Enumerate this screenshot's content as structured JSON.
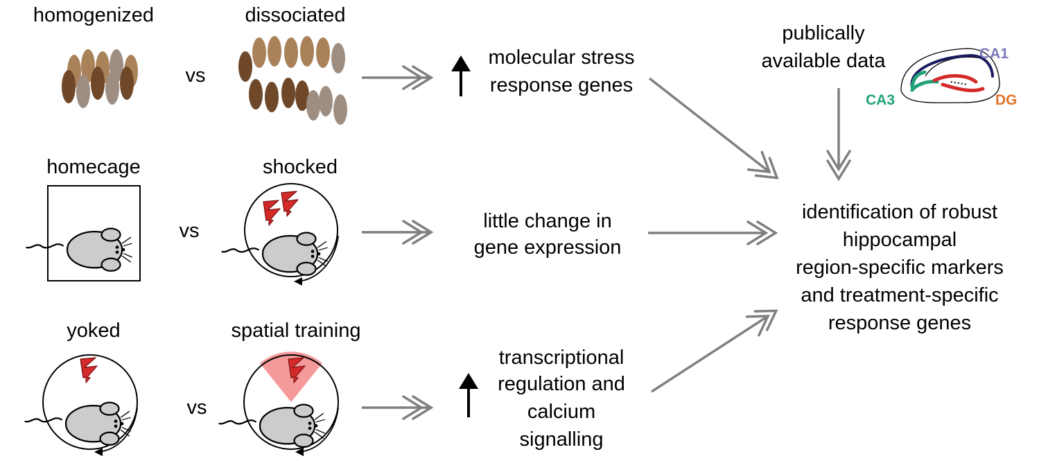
{
  "rows": [
    {
      "left": "homogenized",
      "vs": "vs",
      "right": "dissociated",
      "result": [
        "molecular stress",
        "response genes"
      ],
      "trend": "up"
    },
    {
      "left": "homecage",
      "vs": "vs",
      "right": "shocked",
      "result": [
        "little change in",
        "gene expression"
      ],
      "trend": "none"
    },
    {
      "left": "yoked",
      "vs": "vs",
      "right": "spatial training",
      "result": [
        "transcriptional",
        "regulation and",
        "calcium",
        "signalling"
      ],
      "trend": "up"
    }
  ],
  "public_data": [
    "publically",
    "available data"
  ],
  "regions": {
    "ca1": "CA1",
    "ca3": "CA3",
    "dg": "DG"
  },
  "outcome": [
    "identification of robust",
    "hippocampal",
    "region-specific markers",
    "and treatment-specific",
    "response genes"
  ],
  "colors": {
    "arrow": "#7f7f7f",
    "ca1": "#7b79b8",
    "ca3": "#21a27a",
    "dg": "#e0732a",
    "ca1_line": "#1a1a5e",
    "dg_line": "#d42a2a",
    "shock": "#d42a2a",
    "shock_zone": "#f59a9a",
    "mouse": "#cccccc",
    "cell_light": "#a9825a",
    "cell_dark": "#6e4828",
    "cell_gray": "#9e8e82"
  },
  "icons": [
    "tissue-cells-icon",
    "mouse-icon",
    "lightning-icon",
    "hippocampus-icon",
    "up-arrow-icon",
    "double-arrow-icon"
  ]
}
